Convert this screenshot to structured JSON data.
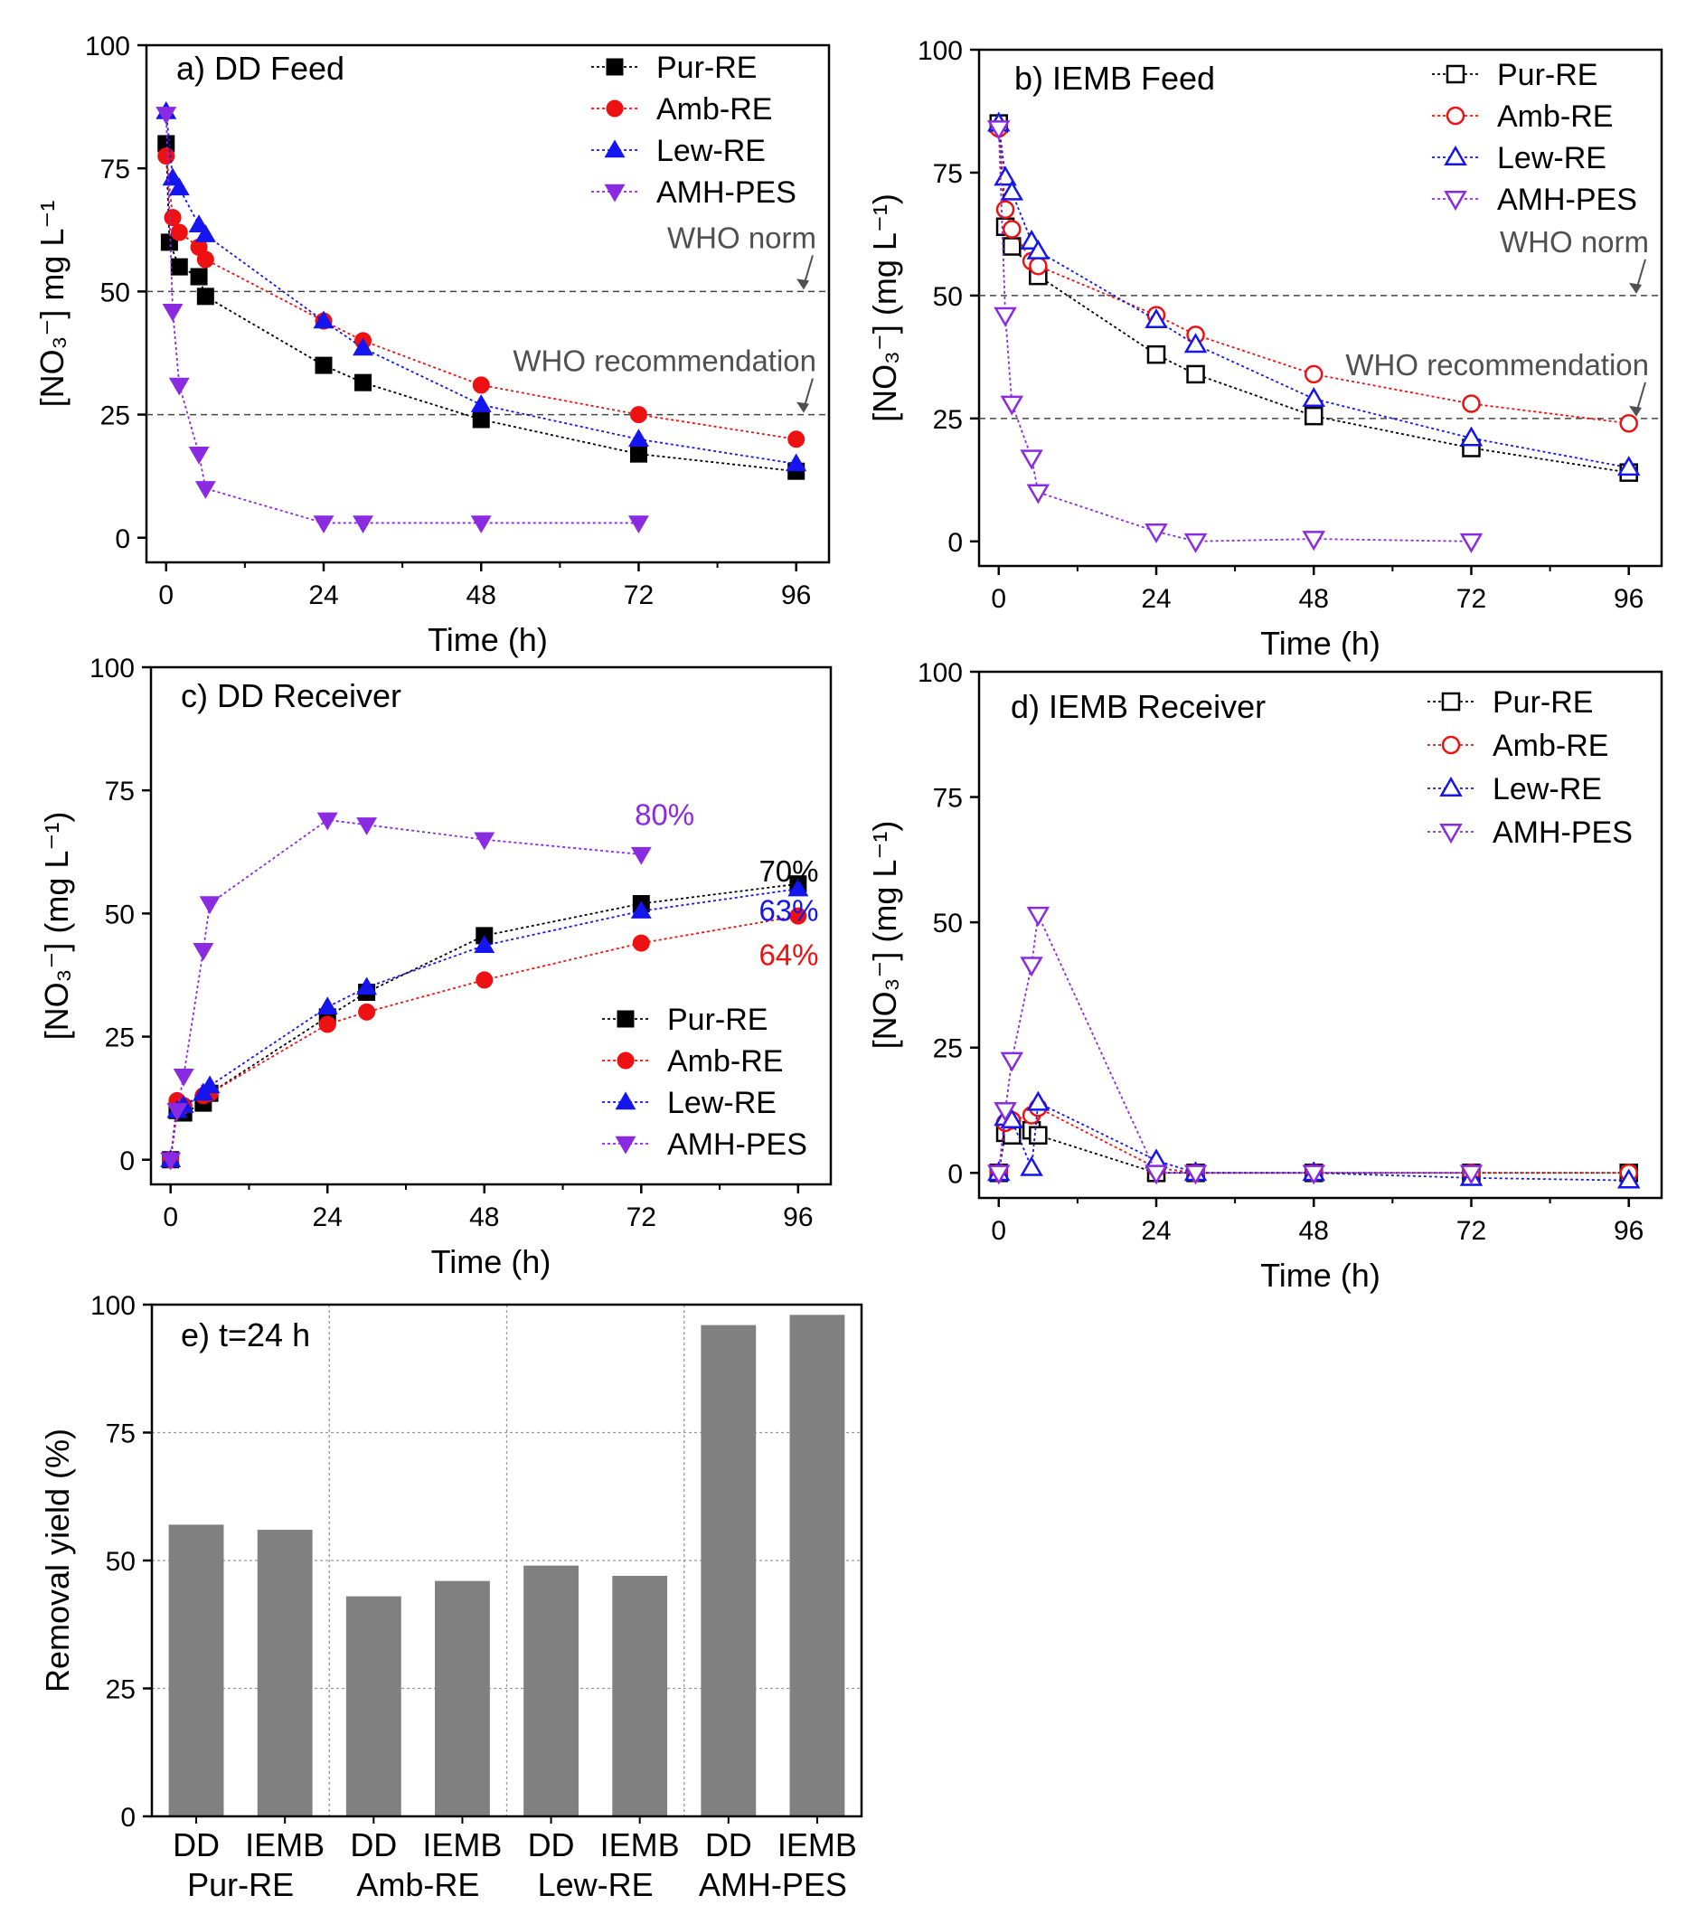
{
  "chart_data": [
    {
      "id": "a",
      "type": "line",
      "title": "a) DD Feed",
      "xlabel": "Time (h)",
      "ylabel": "[NO₃⁻] mg L⁻¹",
      "xlim": [
        -3,
        101
      ],
      "ylim": [
        -5,
        100
      ],
      "xticks": [
        0,
        24,
        48,
        72,
        96
      ],
      "yticks": [
        0,
        25,
        50,
        75,
        100
      ],
      "legend_position": "top-right",
      "marker_fill": "filled",
      "reference_lines": [
        {
          "y": 50,
          "label": "WHO norm"
        },
        {
          "y": 25,
          "label": "WHO recommendation"
        }
      ],
      "annotations": [],
      "series": [
        {
          "name": "Pur-RE",
          "color": "#000000",
          "marker": "square",
          "x": [
            0,
            0.5,
            2,
            5,
            6,
            24,
            30,
            48,
            72,
            96
          ],
          "y": [
            80,
            60,
            55,
            53,
            49,
            35,
            31.5,
            24,
            17,
            13.5
          ]
        },
        {
          "name": "Amb-RE",
          "color": "#ee1111",
          "marker": "circle",
          "x": [
            0,
            1,
            2,
            5,
            6,
            24,
            30,
            48,
            72,
            96
          ],
          "y": [
            77.5,
            65,
            62,
            59,
            56.5,
            44,
            40,
            31,
            25,
            20
          ]
        },
        {
          "name": "Lew-RE",
          "color": "#1515ee",
          "marker": "triangle-up",
          "x": [
            0,
            1,
            2,
            5,
            6,
            24,
            30,
            48,
            72,
            96
          ],
          "y": [
            86.5,
            73,
            71,
            63.5,
            61.5,
            44,
            38.5,
            27,
            20,
            15
          ]
        },
        {
          "name": "AMH-PES",
          "color": "#8a2be2",
          "marker": "triangle-down",
          "x": [
            0,
            1,
            2,
            5,
            6,
            24,
            30,
            48,
            72
          ],
          "y": [
            86,
            46,
            31,
            17,
            10,
            3,
            3,
            3,
            3
          ]
        }
      ]
    },
    {
      "id": "b",
      "type": "line",
      "title": "b) IEMB Feed",
      "xlabel": "Time (h)",
      "ylabel": "[NO₃⁻] (mg L⁻¹)",
      "xlim": [
        -3,
        101
      ],
      "ylim": [
        -5,
        100
      ],
      "xticks": [
        0,
        24,
        48,
        72,
        96
      ],
      "yticks": [
        0,
        25,
        50,
        75,
        100
      ],
      "legend_position": "top-right",
      "marker_fill": "open",
      "reference_lines": [
        {
          "y": 50,
          "label": "WHO norm"
        },
        {
          "y": 25,
          "label": "WHO recommendation"
        }
      ],
      "annotations": [],
      "series": [
        {
          "name": "Pur-RE",
          "color": "#000000",
          "marker": "square",
          "x": [
            0,
            1,
            2,
            6,
            24,
            30,
            48,
            72,
            96
          ],
          "y": [
            85,
            64,
            60,
            54,
            38,
            34,
            25.5,
            19,
            14
          ]
        },
        {
          "name": "Amb-RE",
          "color": "#ee1111",
          "marker": "circle",
          "x": [
            0,
            1,
            2,
            5,
            6,
            24,
            30,
            48,
            72,
            96
          ],
          "y": [
            84,
            67.5,
            63.5,
            57,
            56,
            46,
            42,
            34,
            28,
            24
          ]
        },
        {
          "name": "Lew-RE",
          "color": "#1515ee",
          "marker": "triangle-up",
          "x": [
            0,
            1,
            2,
            5,
            6,
            24,
            30,
            48,
            72,
            96
          ],
          "y": [
            85,
            74,
            71,
            61,
            59,
            45,
            40,
            29,
            21,
            15
          ]
        },
        {
          "name": "AMH-PES",
          "color": "#8a2be2",
          "marker": "triangle-down",
          "x": [
            0,
            1,
            2,
            5,
            6,
            24,
            30,
            48,
            72
          ],
          "y": [
            84,
            46,
            28,
            17,
            10,
            2,
            0,
            0.5,
            0
          ]
        }
      ]
    },
    {
      "id": "c",
      "type": "line",
      "title": "c) DD Receiver",
      "xlabel": "Time (h)",
      "ylabel": "[NO₃⁻] (mg L⁻¹)",
      "xlim": [
        -3,
        101
      ],
      "ylim": [
        -5,
        100
      ],
      "xticks": [
        0,
        24,
        48,
        72,
        96
      ],
      "yticks": [
        0,
        25,
        50,
        75,
        100
      ],
      "legend_position": "bottom-right",
      "marker_fill": "filled",
      "reference_lines": [],
      "annotations": [
        {
          "text": "80%",
          "x": 71,
          "y": 68,
          "color": "#8a2be2"
        },
        {
          "text": "70%",
          "x": 90,
          "y": 56.5,
          "color": "#000000"
        },
        {
          "text": "63%",
          "x": 90,
          "y": 48.5,
          "color": "#1515ee"
        },
        {
          "text": "64%",
          "x": 90,
          "y": 39.5,
          "color": "#ee1111"
        }
      ],
      "series": [
        {
          "name": "Pur-RE",
          "color": "#000000",
          "marker": "square",
          "x": [
            0,
            1,
            2,
            5,
            6,
            24,
            30,
            48,
            72,
            96
          ],
          "y": [
            0,
            10,
            9.5,
            11.5,
            13.5,
            29,
            34,
            45.5,
            52,
            56
          ]
        },
        {
          "name": "Amb-RE",
          "color": "#ee1111",
          "marker": "circle",
          "x": [
            0,
            1,
            2,
            5,
            6,
            24,
            30,
            48,
            72,
            96
          ],
          "y": [
            0,
            12,
            11,
            13,
            13.5,
            27.5,
            30,
            36.5,
            44,
            49.5
          ]
        },
        {
          "name": "Lew-RE",
          "color": "#1515ee",
          "marker": "triangle-up",
          "x": [
            0,
            1,
            2,
            5,
            6,
            24,
            30,
            48,
            72,
            96
          ],
          "y": [
            0,
            10,
            11,
            13.5,
            15,
            31,
            35,
            43.5,
            50.5,
            55
          ]
        },
        {
          "name": "AMH-PES",
          "color": "#8a2be2",
          "marker": "triangle-down",
          "x": [
            0,
            1,
            2,
            5,
            6,
            24,
            30,
            48,
            72
          ],
          "y": [
            0,
            10,
            17,
            42.5,
            52,
            69,
            68,
            65,
            62
          ]
        }
      ]
    },
    {
      "id": "d",
      "type": "line",
      "title": "d) IEMB Receiver",
      "xlabel": "Time (h)",
      "ylabel": "[NO₃⁻] (mg L⁻¹)",
      "xlim": [
        -3,
        101
      ],
      "ylim": [
        -5,
        100
      ],
      "xticks": [
        0,
        24,
        48,
        72,
        96
      ],
      "yticks": [
        0,
        25,
        50,
        75,
        100
      ],
      "legend_position": "top-right",
      "marker_fill": "open",
      "reference_lines": [],
      "annotations": [],
      "series": [
        {
          "name": "Pur-RE",
          "color": "#000000",
          "marker": "square",
          "x": [
            0,
            1,
            2,
            5,
            6,
            24,
            30,
            48,
            72,
            96
          ],
          "y": [
            0,
            8,
            7.5,
            8.5,
            7.5,
            0,
            0,
            0,
            0,
            0
          ]
        },
        {
          "name": "Amb-RE",
          "color": "#ee1111",
          "marker": "circle",
          "x": [
            0,
            1,
            2,
            5,
            6,
            24,
            30,
            48,
            72,
            96
          ],
          "y": [
            0,
            10,
            10.5,
            11.5,
            13,
            1,
            0,
            0,
            0,
            0
          ]
        },
        {
          "name": "Lew-RE",
          "color": "#1515ee",
          "marker": "triangle-up",
          "x": [
            0,
            1,
            2,
            5,
            6,
            24,
            30,
            48,
            72,
            96
          ],
          "y": [
            0,
            11,
            10.5,
            1,
            14,
            2.5,
            0,
            0,
            -1,
            -1.5
          ]
        },
        {
          "name": "AMH-PES",
          "color": "#8a2be2",
          "marker": "triangle-down",
          "x": [
            0,
            1,
            2,
            5,
            6,
            24,
            30,
            48,
            72
          ],
          "y": [
            0,
            12.5,
            22.5,
            41.5,
            51.5,
            0,
            0,
            0,
            0
          ]
        }
      ]
    },
    {
      "id": "e",
      "type": "bar",
      "title": "e) t=24 h",
      "xlabel": "",
      "ylabel": "Removal yield (%)",
      "ylim": [
        0,
        100
      ],
      "yticks": [
        0,
        25,
        50,
        75,
        100
      ],
      "color": "#808080",
      "grid": true,
      "categories": [
        "DD",
        "IEMB",
        "DD",
        "IEMB",
        "DD",
        "IEMB",
        "DD",
        "IEMB"
      ],
      "groups": [
        "Pur-RE",
        "Amb-RE",
        "Lew-RE",
        "AMH-PES"
      ],
      "values": [
        57,
        56,
        43,
        46,
        49,
        47,
        96,
        98
      ]
    }
  ]
}
